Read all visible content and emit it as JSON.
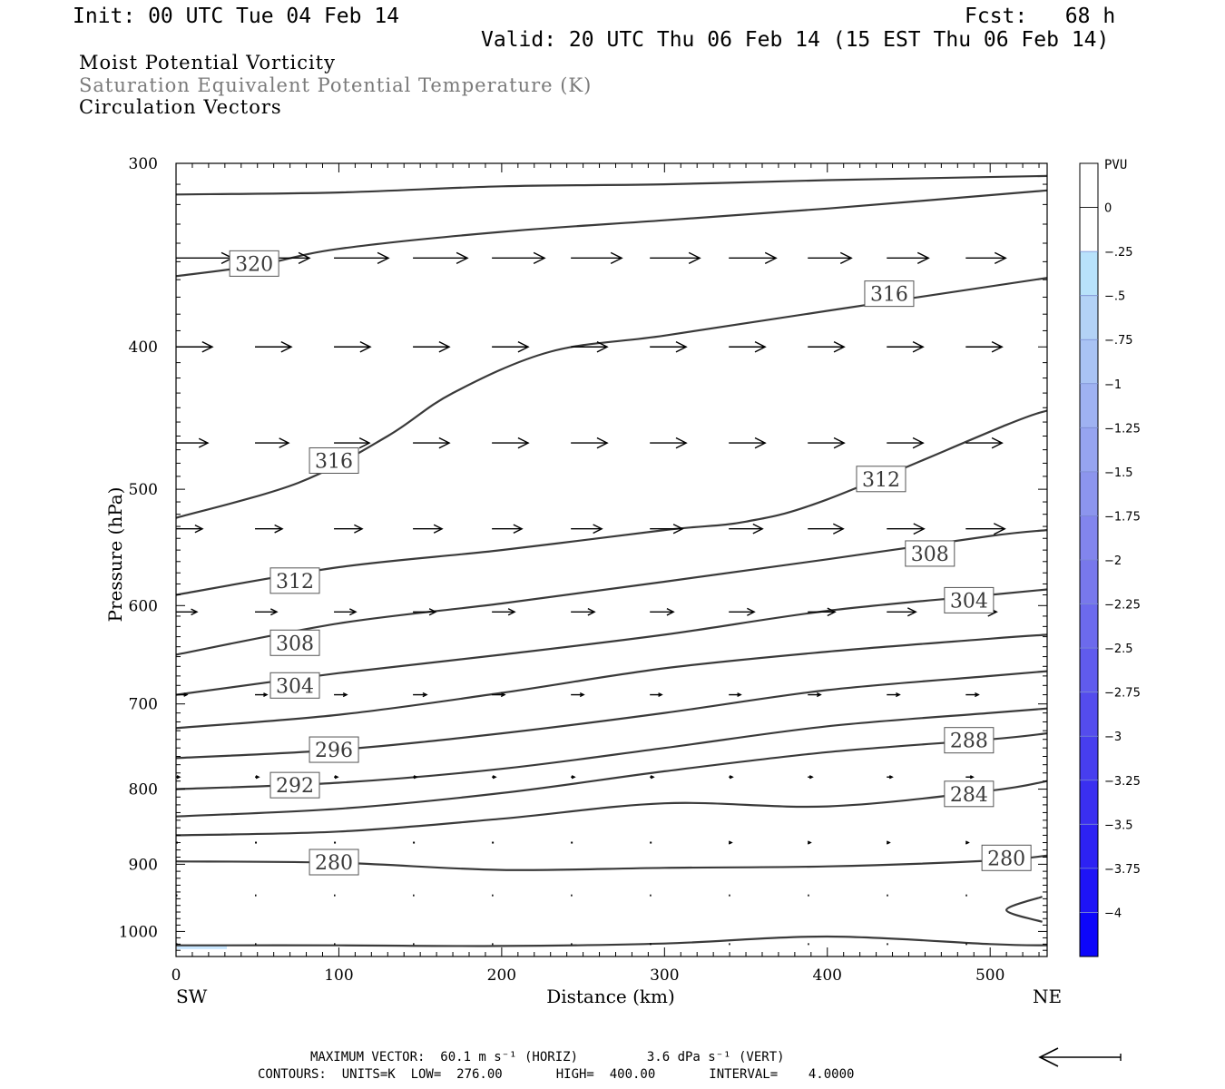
{
  "header": {
    "init": "Init: 00 UTC Tue 04 Feb 14",
    "fcst": "Fcst:   68 h",
    "valid": "Valid: 20 UTC Thu 06 Feb 14 (15 EST Thu 06 Feb 14)",
    "fields": [
      "Moist Potential Vorticity",
      "Saturation Equivalent Potential Temperature (K)",
      "Circulation Vectors"
    ]
  },
  "footer": {
    "max_vector": "MAXIMUM VECTOR:  60.1 m s⁻¹ (HORIZ)         3.6 dPa s⁻¹ (VERT)",
    "contours": "CONTOURS:  UNITS=K  LOW=  276.00       HIGH=  400.00       INTERVAL=    4.0000"
  },
  "colors": {
    "contour": "#3a3a3a",
    "vector": "#000000",
    "pv_negative_shade": "#c8e6ff"
  },
  "chart_data": {
    "type": "line",
    "title": "",
    "xlabel": "Distance (km)",
    "ylabel": "Pressure (hPa)",
    "xlim": [
      0,
      535
    ],
    "ylim": [
      1040,
      300
    ],
    "y_scale": "log-pressure",
    "x_ticks": [
      0,
      100,
      200,
      300,
      400,
      500
    ],
    "y_ticks": [
      300,
      400,
      500,
      600,
      700,
      800,
      900,
      1000
    ],
    "x_end_labels": [
      "SW",
      "NE"
    ],
    "series": [
      {
        "name": "",
        "label": "",
        "x": [
          0,
          100,
          200,
          300,
          400,
          535
        ],
        "y": [
          315,
          314,
          311,
          310,
          308,
          306
        ]
      },
      {
        "name": "320",
        "label": "320",
        "x": [
          0,
          50,
          100,
          200,
          300,
          400,
          535
        ],
        "y": [
          358,
          352,
          343,
          334,
          328,
          322,
          313
        ]
      },
      {
        "name": "316",
        "label": "316",
        "x": [
          0,
          75,
          130,
          170,
          230,
          300,
          400,
          535
        ],
        "y": [
          523,
          495,
          460,
          430,
          403,
          393,
          378,
          359
        ]
      },
      {
        "name": "312",
        "label": "312",
        "x": [
          0,
          100,
          200,
          300,
          350,
          400,
          510,
          535
        ],
        "y": [
          590,
          565,
          550,
          533,
          526,
          508,
          452,
          442
        ]
      },
      {
        "name": "308",
        "label": "308",
        "x": [
          0,
          100,
          200,
          300,
          400,
          500,
          535
        ],
        "y": [
          648,
          617,
          598,
          578,
          558,
          538,
          533
        ]
      },
      {
        "name": "304",
        "label": "304",
        "x": [
          0,
          100,
          200,
          300,
          400,
          500,
          535
        ],
        "y": [
          690,
          667,
          648,
          628,
          605,
          590,
          585
        ]
      },
      {
        "name": "",
        "label": "",
        "x": [
          0,
          100,
          200,
          300,
          400,
          500,
          535
        ],
        "y": [
          727,
          712,
          688,
          662,
          645,
          632,
          628
        ]
      },
      {
        "name": "296",
        "label": "296",
        "x": [
          0,
          100,
          200,
          300,
          400,
          500,
          535
        ],
        "y": [
          762,
          752,
          733,
          710,
          685,
          670,
          665
        ]
      },
      {
        "name": "",
        "label": "",
        "x": [
          0,
          100,
          200,
          300,
          400,
          500,
          535
        ],
        "y": [
          800,
          792,
          775,
          750,
          725,
          710,
          705
        ]
      },
      {
        "name": "292",
        "label": "292",
        "x": [
          0,
          100,
          200,
          300,
          400,
          500,
          535
        ],
        "y": [
          835,
          825,
          805,
          778,
          755,
          740,
          733
        ]
      },
      {
        "name": "288",
        "label": "288",
        "x": [
          0,
          100,
          200,
          300,
          400,
          500,
          535
        ],
        "y": [
          860,
          855,
          838,
          818,
          822,
          802,
          790
        ]
      },
      {
        "name": "284",
        "label": "284",
        "x": [
          0,
          100,
          200,
          300,
          400,
          500,
          535
        ],
        "y": [
          896,
          898,
          908,
          905,
          903,
          895,
          888
        ]
      },
      {
        "name": "280",
        "label": "280",
        "x": [
          0,
          100,
          200,
          300,
          400,
          500,
          535
        ],
        "y": [
          1022,
          1022,
          1023,
          1019,
          1008,
          1020,
          1022
        ]
      },
      {
        "name": "",
        "label": "",
        "x": [
          532,
          510,
          532
        ],
        "y": [
          947,
          967,
          985
        ]
      }
    ],
    "contour_labels": [
      {
        "text": "320",
        "x": 48,
        "y": 351
      },
      {
        "text": "316",
        "x": 97,
        "y": 478
      },
      {
        "text": "316",
        "x": 438,
        "y": 368
      },
      {
        "text": "312",
        "x": 73,
        "y": 577
      },
      {
        "text": "312",
        "x": 433,
        "y": 492
      },
      {
        "text": "308",
        "x": 73,
        "y": 636
      },
      {
        "text": "308",
        "x": 463,
        "y": 553
      },
      {
        "text": "304",
        "x": 73,
        "y": 680
      },
      {
        "text": "304",
        "x": 487,
        "y": 595
      },
      {
        "text": "296",
        "x": 97,
        "y": 752
      },
      {
        "text": "292",
        "x": 73,
        "y": 795
      },
      {
        "text": "288",
        "x": 487,
        "y": 741
      },
      {
        "text": "284",
        "x": 487,
        "y": 806
      },
      {
        "text": "280",
        "x": 97,
        "y": 897
      },
      {
        "text": "280",
        "x": 510,
        "y": 891
      }
    ],
    "vectors": {
      "x": [
        0,
        48.5,
        97,
        145.5,
        194,
        242.5,
        291,
        339.5,
        388,
        436.5,
        485
      ],
      "rows": [
        {
          "p": 348,
          "len": [
            62,
            60,
            60,
            60,
            58,
            56,
            55,
            52,
            48,
            46,
            44
          ]
        },
        {
          "p": 400,
          "len": [
            40,
            40,
            40,
            40,
            40,
            40,
            40,
            40,
            40,
            40,
            40
          ]
        },
        {
          "p": 465,
          "len": [
            35,
            37,
            39,
            40,
            40,
            40,
            40,
            40,
            40,
            40,
            40
          ]
        },
        {
          "p": 532,
          "len": [
            29,
            30,
            31,
            32,
            33,
            34,
            36,
            37,
            39,
            41,
            43
          ]
        },
        {
          "p": 606,
          "len": [
            23,
            24,
            24,
            25,
            25,
            26,
            26,
            28,
            30,
            32,
            34
          ]
        },
        {
          "p": 690,
          "len": [
            12,
            13,
            14,
            15,
            14,
            14,
            13,
            13,
            14,
            14,
            14
          ]
        },
        {
          "p": 785,
          "len": [
            4,
            4,
            4,
            4,
            4,
            4,
            4,
            4,
            5,
            6,
            8
          ]
        },
        {
          "p": 870,
          "len": [
            2,
            2,
            2,
            2,
            2,
            2,
            2,
            3,
            3,
            3,
            3
          ]
        },
        {
          "p": 945,
          "len": [
            1,
            1,
            1,
            1,
            1,
            1,
            1,
            1,
            1,
            1,
            1
          ]
        },
        {
          "p": 1020,
          "len": [
            1,
            1,
            1,
            1,
            1,
            1,
            1,
            1,
            1,
            1,
            1
          ]
        }
      ]
    },
    "legend": {
      "title": "PVU",
      "levels": [
        "0",
        "-.25",
        "-.5",
        "-.75",
        "-1",
        "-1.25",
        "-1.5",
        "-1.75",
        "-2",
        "-2.25",
        "-2.5",
        "-2.75",
        "-3",
        "-3.25",
        "-3.5",
        "-3.75",
        "-4"
      ],
      "colors": [
        "#ffffff",
        "#ffffff",
        "#b8e2fb",
        "#b3d2f6",
        "#a9c3f4",
        "#9fb2f2",
        "#96a4f0",
        "#8c95ee",
        "#8285ed",
        "#7878ec",
        "#6c6aed",
        "#605bed",
        "#544ced",
        "#473eee",
        "#3a2ff0",
        "#2d22f3",
        "#1e14f6",
        "#0d06fa"
      ],
      "placement": "right"
    },
    "grid": false
  }
}
